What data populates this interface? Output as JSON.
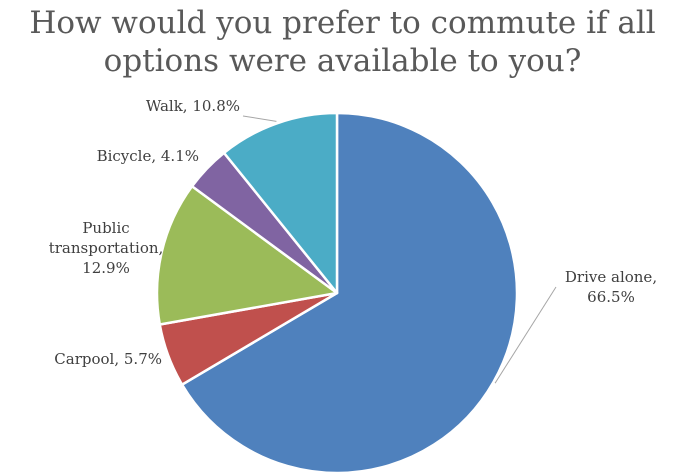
{
  "chart_data": {
    "type": "pie",
    "title_lines": [
      "How would you prefer to commute if all",
      "options were available to you?"
    ],
    "slices": [
      {
        "label_lines": [
          "Drive alone,",
          "66.5%"
        ],
        "category": "Drive alone",
        "value": 66.5,
        "color": "#4F81BD"
      },
      {
        "label_lines": [
          "Carpool, 5.7%"
        ],
        "category": "Carpool",
        "value": 5.7,
        "color": "#C0504D"
      },
      {
        "label_lines": [
          "Public",
          "transportation,",
          "12.9%"
        ],
        "category": "Public transportation",
        "value": 12.9,
        "color": "#9BBB59"
      },
      {
        "label_lines": [
          "Bicycle, 4.1%"
        ],
        "category": "Bicycle",
        "value": 4.1,
        "color": "#8064A2"
      },
      {
        "label_lines": [
          "Walk, 10.8%"
        ],
        "category": "Walk",
        "value": 10.8,
        "color": "#4BACC6"
      }
    ]
  }
}
